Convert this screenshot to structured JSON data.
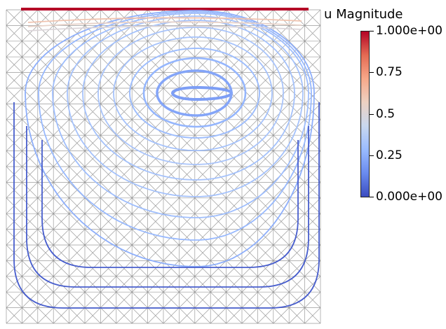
{
  "scalar_bar": {
    "title": "u Magnitude",
    "labels": [
      "1.000e+00",
      "0.75",
      "0.5",
      "0.25",
      "0.000e+00"
    ],
    "values": [
      1.0,
      0.75,
      0.5,
      0.25,
      0.0
    ],
    "colormap": [
      "#3b4cc0",
      "#6a8bef",
      "#9abbff",
      "#c9d8ef",
      "#edd1c2",
      "#f7a889",
      "#e36a53",
      "#b40426"
    ]
  }
}
